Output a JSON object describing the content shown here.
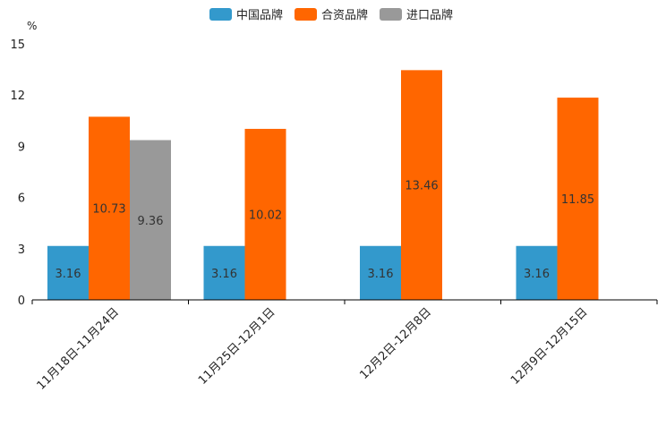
{
  "chart_data": {
    "type": "bar",
    "title": "",
    "ylabel": "%",
    "xlabel": "",
    "ylim": [
      0,
      15
    ],
    "yticks": [
      "0",
      "3",
      "6",
      "9",
      "12",
      "15"
    ],
    "categories": [
      "11月18日-11月24日",
      "11月25日-12月1日",
      "12月2日-12月8日",
      "12月9日-12月15日"
    ],
    "series": [
      {
        "name": "中国品牌",
        "color": "#3399cc",
        "values": [
          3.16,
          3.16,
          3.16,
          3.16
        ],
        "labels": [
          "3.16",
          "3.16",
          "3.16",
          "3.16"
        ]
      },
      {
        "name": "合资品牌",
        "color": "#ff6600",
        "values": [
          10.73,
          10.02,
          13.46,
          11.85
        ],
        "labels": [
          "10.73",
          "10.02",
          "13.46",
          "11.85"
        ]
      },
      {
        "name": "进口品牌",
        "color": "#999999",
        "values": [
          9.36,
          null,
          null,
          null
        ],
        "labels": [
          "9.36",
          "",
          "",
          ""
        ]
      }
    ],
    "legend_position": "top-center",
    "grid": false
  }
}
